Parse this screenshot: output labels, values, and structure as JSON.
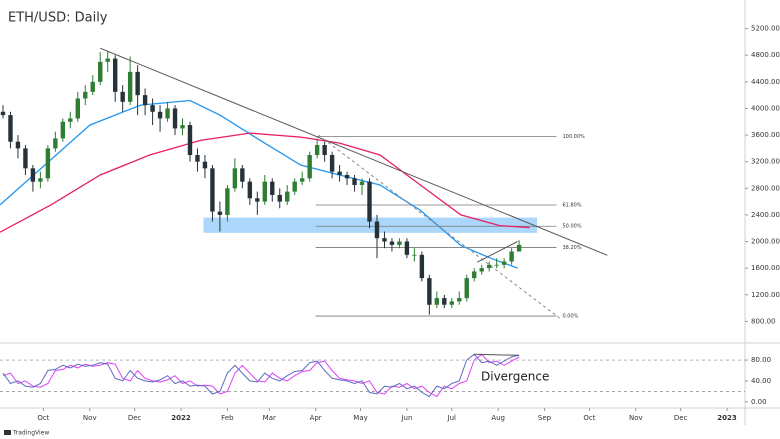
{
  "chart_data": [
    {
      "type": "candlestick",
      "title": "ETH/USD: Daily",
      "x": [
        3,
        8,
        13,
        18,
        23,
        28,
        33,
        38,
        43,
        48,
        53,
        58,
        63,
        68,
        73,
        78,
        83,
        88,
        93,
        98,
        103,
        108,
        113,
        118,
        123,
        128,
        133,
        138,
        143,
        148,
        153,
        158,
        163,
        168,
        173,
        178,
        183,
        188,
        193,
        198,
        203,
        208,
        213,
        218,
        223,
        228,
        233,
        238,
        243,
        248,
        253,
        258,
        263,
        268,
        273,
        278,
        283,
        288,
        293,
        298,
        303,
        308,
        313,
        318,
        323,
        328,
        333,
        338,
        343,
        348
      ],
      "open": [
        3950,
        3900,
        3500,
        3400,
        3100,
        2900,
        2950,
        3400,
        3550,
        3800,
        3850,
        4150,
        4250,
        4400,
        4700,
        4750,
        4250,
        4100,
        4550,
        4200,
        4050,
        3950,
        3850,
        4000,
        3700,
        3750,
        3300,
        3200,
        3100,
        2450,
        2400,
        2800,
        3100,
        2900,
        2650,
        2600,
        2900,
        2700,
        2600,
        2750,
        2900,
        2950,
        3300,
        3450,
        3300,
        3050,
        3000,
        2950,
        2850,
        2900,
        2300,
        2050,
        2000,
        1950,
        2000,
        1800,
        1800,
        1450,
        1050,
        1150,
        1050,
        1100,
        1150,
        1450,
        1550,
        1600,
        1650,
        1650,
        1700,
        1850
      ],
      "high": [
        4050,
        3950,
        3600,
        3450,
        3150,
        3050,
        3450,
        3650,
        3850,
        3950,
        4250,
        4350,
        4500,
        4850,
        4870,
        4800,
        4350,
        4780,
        4650,
        4300,
        4150,
        4050,
        4100,
        4050,
        3850,
        3800,
        3400,
        3300,
        3150,
        2600,
        2850,
        3250,
        3150,
        2950,
        2750,
        3000,
        2950,
        2800,
        2850,
        2950,
        3050,
        3350,
        3550,
        3500,
        3350,
        3150,
        3050,
        3000,
        2950,
        2950,
        2400,
        2150,
        2050,
        2050,
        2050,
        1900,
        1850,
        1500,
        1250,
        1200,
        1150,
        1250,
        1500,
        1600,
        1650,
        1700,
        1750,
        1750,
        1900,
        2020
      ],
      "low": [
        3850,
        3400,
        3250,
        3000,
        2750,
        2800,
        2900,
        3350,
        3500,
        3700,
        3800,
        4050,
        4200,
        4350,
        4550,
        4100,
        3950,
        4050,
        3900,
        3900,
        3750,
        3650,
        3800,
        3600,
        3600,
        3200,
        3050,
        2950,
        2300,
        2150,
        2300,
        2750,
        2800,
        2550,
        2400,
        2550,
        2600,
        2500,
        2550,
        2700,
        2850,
        2900,
        3250,
        3200,
        2950,
        2900,
        2850,
        2750,
        2700,
        2200,
        1750,
        1900,
        1850,
        1900,
        1750,
        1700,
        1400,
        900,
        1000,
        1000,
        1000,
        1050,
        1100,
        1400,
        1500,
        1550,
        1600,
        1600,
        1650,
        1850
      ],
      "close": [
        3900,
        3500,
        3400,
        3100,
        2900,
        2950,
        3400,
        3550,
        3800,
        3850,
        4150,
        4250,
        4400,
        4700,
        4750,
        4250,
        4100,
        4550,
        4200,
        4050,
        3950,
        3850,
        4000,
        3700,
        3750,
        3300,
        3200,
        3100,
        2450,
        2400,
        2800,
        3100,
        2900,
        2650,
        2600,
        2900,
        2700,
        2600,
        2750,
        2900,
        2950,
        3300,
        3450,
        3300,
        3050,
        3000,
        2950,
        2850,
        2900,
        2300,
        2050,
        2000,
        1950,
        2000,
        1800,
        1800,
        1450,
        1050,
        1150,
        1050,
        1100,
        1150,
        1450,
        1550,
        1600,
        1650,
        1650,
        1700,
        1850,
        1950
      ],
      "up_color": "#2e7d32",
      "down_color": "#263238",
      "series": [
        {
          "color": "#2196f3",
          "x": [
            1,
            61,
            95,
            128,
            148,
            175,
            202,
            228,
            255,
            282,
            309,
            329,
            347
          ],
          "values": [
            2550,
            3750,
            4050,
            4120,
            3900,
            3520,
            3150,
            3000,
            2850,
            2470,
            1940,
            1750,
            1600
          ]
        },
        {
          "color": "#e91e63",
          "x": [
            1,
            35,
            68,
            101,
            135,
            168,
            202,
            228,
            255,
            282,
            309,
            335,
            355
          ],
          "values": [
            2140,
            2550,
            3000,
            3300,
            3520,
            3630,
            3570,
            3480,
            3300,
            2850,
            2400,
            2240,
            2210
          ]
        }
      ],
      "fib_x": [
        212,
        373
      ],
      "fib_levels": [
        {
          "label": "100.00%",
          "price": 3580
        },
        {
          "label": "61.80%",
          "price": 2549
        },
        {
          "label": "50.00%",
          "price": 2230
        },
        {
          "label": "38.20%",
          "price": 1911
        },
        {
          "label": "0.00%",
          "price": 880
        }
      ],
      "zone": {
        "x": [
          137,
          360
        ],
        "y": [
          2130,
          2360
        ],
        "color": "#90caf9"
      },
      "trendlines": [
        {
          "x": [
            68,
            407
          ],
          "y": [
            4906,
            1793
          ],
          "style": "solid",
          "color": "#555555"
        },
        {
          "x": [
            214,
            375
          ],
          "y": [
            3600,
            850
          ],
          "style": "dashed",
          "color": "#888888"
        },
        {
          "x": [
            320,
            347
          ],
          "y": [
            1690,
            2000
          ],
          "style": "solid",
          "color": "#555555"
        }
      ],
      "xlim": [
        1,
        499
      ],
      "ylim": [
        520,
        5630
      ],
      "yticks": [
        {
          "value": 800,
          "label": "800.00"
        },
        {
          "value": 1200,
          "label": "1200.00"
        },
        {
          "value": 1600,
          "label": "1600.00"
        },
        {
          "value": 2000,
          "label": "2000.00"
        },
        {
          "value": 2400,
          "label": "2400.00"
        },
        {
          "value": 2800,
          "label": "2800.00"
        },
        {
          "value": 3200,
          "label": "3200.00"
        },
        {
          "value": 3600,
          "label": "3600.00"
        },
        {
          "value": 4000,
          "label": "4000.00"
        },
        {
          "value": 4400,
          "label": "4400.00"
        },
        {
          "value": 4800,
          "label": "4800.00"
        },
        {
          "value": 5200,
          "label": "5200.00"
        }
      ]
    },
    {
      "type": "line",
      "x": [
        3,
        8,
        13,
        18,
        23,
        28,
        33,
        38,
        43,
        48,
        53,
        58,
        63,
        68,
        73,
        78,
        83,
        88,
        93,
        98,
        103,
        108,
        113,
        118,
        123,
        128,
        133,
        138,
        143,
        148,
        153,
        158,
        163,
        168,
        173,
        178,
        183,
        188,
        193,
        198,
        203,
        208,
        213,
        218,
        223,
        228,
        233,
        238,
        243,
        248,
        253,
        258,
        263,
        268,
        273,
        278,
        283,
        288,
        293,
        298,
        303,
        308,
        313,
        318,
        323,
        328,
        333,
        338,
        343,
        348
      ],
      "series": [
        {
          "color": "#e040fb",
          "values": [
            50,
            55,
            35,
            40,
            30,
            28,
            35,
            60,
            62,
            70,
            65,
            72,
            68,
            70,
            75,
            72,
            45,
            40,
            60,
            45,
            40,
            38,
            42,
            50,
            35,
            40,
            30,
            32,
            30,
            15,
            20,
            55,
            70,
            55,
            40,
            38,
            55,
            45,
            40,
            50,
            58,
            60,
            75,
            78,
            60,
            45,
            42,
            40,
            35,
            40,
            18,
            15,
            30,
            28,
            35,
            25,
            30,
            18,
            10,
            30,
            25,
            35,
            40,
            80,
            91,
            75,
            78,
            70,
            78,
            86
          ]
        },
        {
          "color": "#5c6bc0",
          "values": [
            55,
            35,
            40,
            30,
            28,
            35,
            60,
            62,
            70,
            65,
            72,
            68,
            70,
            75,
            72,
            45,
            40,
            60,
            45,
            40,
            38,
            42,
            50,
            35,
            40,
            30,
            32,
            30,
            15,
            20,
            55,
            70,
            55,
            40,
            38,
            55,
            45,
            40,
            50,
            58,
            60,
            75,
            78,
            60,
            45,
            42,
            40,
            35,
            40,
            18,
            15,
            30,
            28,
            35,
            25,
            30,
            18,
            10,
            30,
            25,
            35,
            40,
            80,
            91,
            75,
            78,
            70,
            78,
            86,
            89
          ]
        }
      ],
      "bands": [
        80,
        20
      ],
      "trendlines": [
        {
          "x": [
            318,
            348
          ],
          "y": [
            91,
            89
          ],
          "style": "solid",
          "color": "#555555"
        }
      ],
      "annotation": "Divergence",
      "xlim": [
        1,
        499
      ],
      "ylim": [
        -10,
        105
      ],
      "yticks": [
        {
          "value": 0,
          "label": "0.00"
        },
        {
          "value": 40,
          "label": "40.00"
        },
        {
          "value": 80,
          "label": "80.00"
        }
      ],
      "xticks": [
        {
          "value": 30,
          "label": "Oct"
        },
        {
          "value": 61,
          "label": "Nov"
        },
        {
          "value": 91,
          "label": "Dec"
        },
        {
          "value": 122,
          "label": "2022"
        },
        {
          "value": 153,
          "label": "Feb"
        },
        {
          "value": 181,
          "label": "Mar"
        },
        {
          "value": 212,
          "label": "Apr"
        },
        {
          "value": 242,
          "label": "May"
        },
        {
          "value": 273,
          "label": "Jun"
        },
        {
          "value": 303,
          "label": "Jul"
        },
        {
          "value": 334,
          "label": "Aug"
        },
        {
          "value": 365,
          "label": "Sep"
        },
        {
          "value": 395,
          "label": "Oct"
        },
        {
          "value": 426,
          "label": "Nov"
        },
        {
          "value": 456,
          "label": "Dec"
        },
        {
          "value": 487,
          "label": "2023"
        }
      ]
    }
  ],
  "watermark": "TradingView"
}
